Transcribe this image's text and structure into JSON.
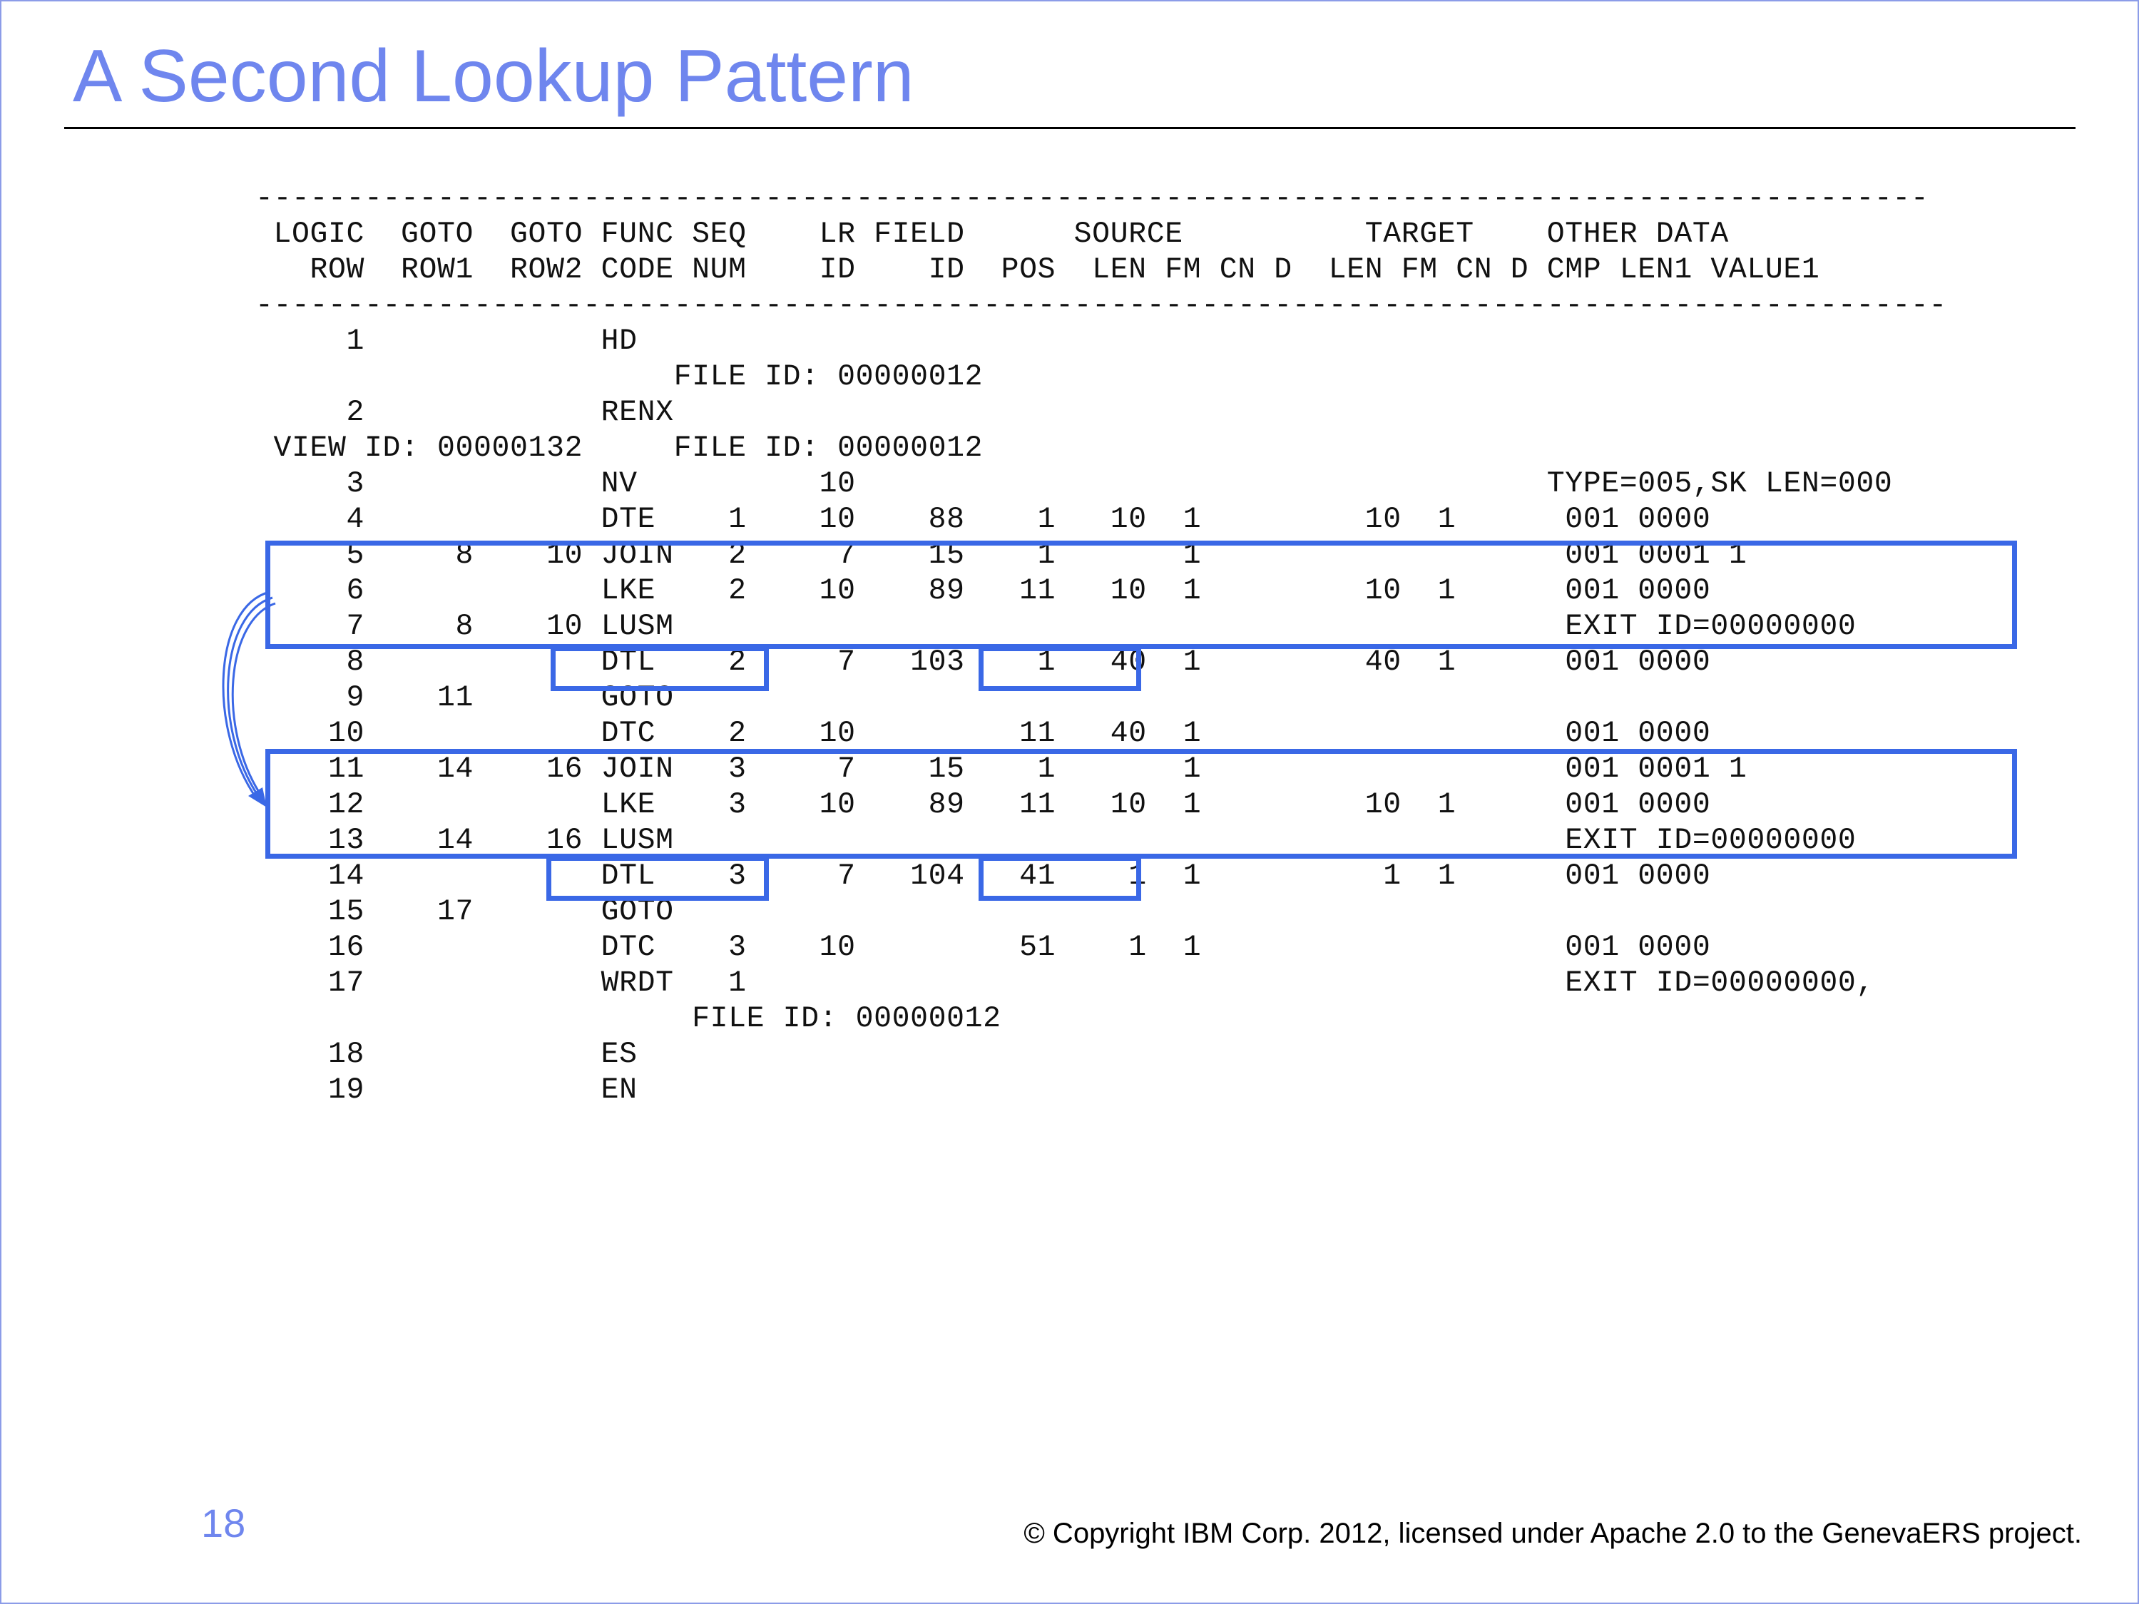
{
  "slide": {
    "title": "A Second Lookup Pattern",
    "page_number": "18",
    "copyright": "© Copyright IBM Corp. 2012, licensed under Apache 2.0 to the GenevaERS project."
  },
  "listing": {
    "lines": [
      "--------------------------------------------------------------------------------------------",
      " LOGIC  GOTO  GOTO FUNC SEQ    LR FIELD      SOURCE          TARGET    OTHER DATA",
      "   ROW  ROW1  ROW2 CODE NUM    ID    ID  POS  LEN FM CN D  LEN FM CN D CMP LEN1 VALUE1",
      "---------------------------------------------------------------------------------------------",
      "     1             HD",
      "                       FILE ID: 00000012",
      "     2             RENX",
      " VIEW ID: 00000132     FILE ID: 00000012",
      "     3             NV          10                                      TYPE=005,SK LEN=000",
      "     4             DTE    1    10    88    1   10  1         10  1      001 0000",
      "     5     8    10 JOIN   2     7    15    1       1                    001 0001 1",
      "     6             LKE    2    10    89   11   10  1         10  1      001 0000",
      "     7     8    10 LUSM                                                 EXIT ID=00000000",
      "     8             DTL    2     7   103    1   40  1         40  1      001 0000",
      "     9    11       GOTO",
      "    10             DTC    2    10         11   40  1                    001 0000",
      "    11    14    16 JOIN   3     7    15    1       1                    001 0001 1",
      "    12             LKE    3    10    89   11   10  1         10  1      001 0000",
      "    13    14    16 LUSM                                                 EXIT ID=00000000",
      "    14             DTL    3     7   104   41    1  1          1  1      001 0000",
      "    15    17       GOTO",
      "    16             DTC    3    10         51    1  1                    001 0000",
      "    17             WRDT   1                                             EXIT ID=00000000,",
      "                        FILE ID: 00000012",
      "    18             ES",
      "    19             EN"
    ]
  },
  "colors": {
    "title": "#6f86ee",
    "highlight": "#3a68e6",
    "frame": "#8c9ce8"
  },
  "icons": {
    "arrow": "curved-arrow-icon"
  }
}
